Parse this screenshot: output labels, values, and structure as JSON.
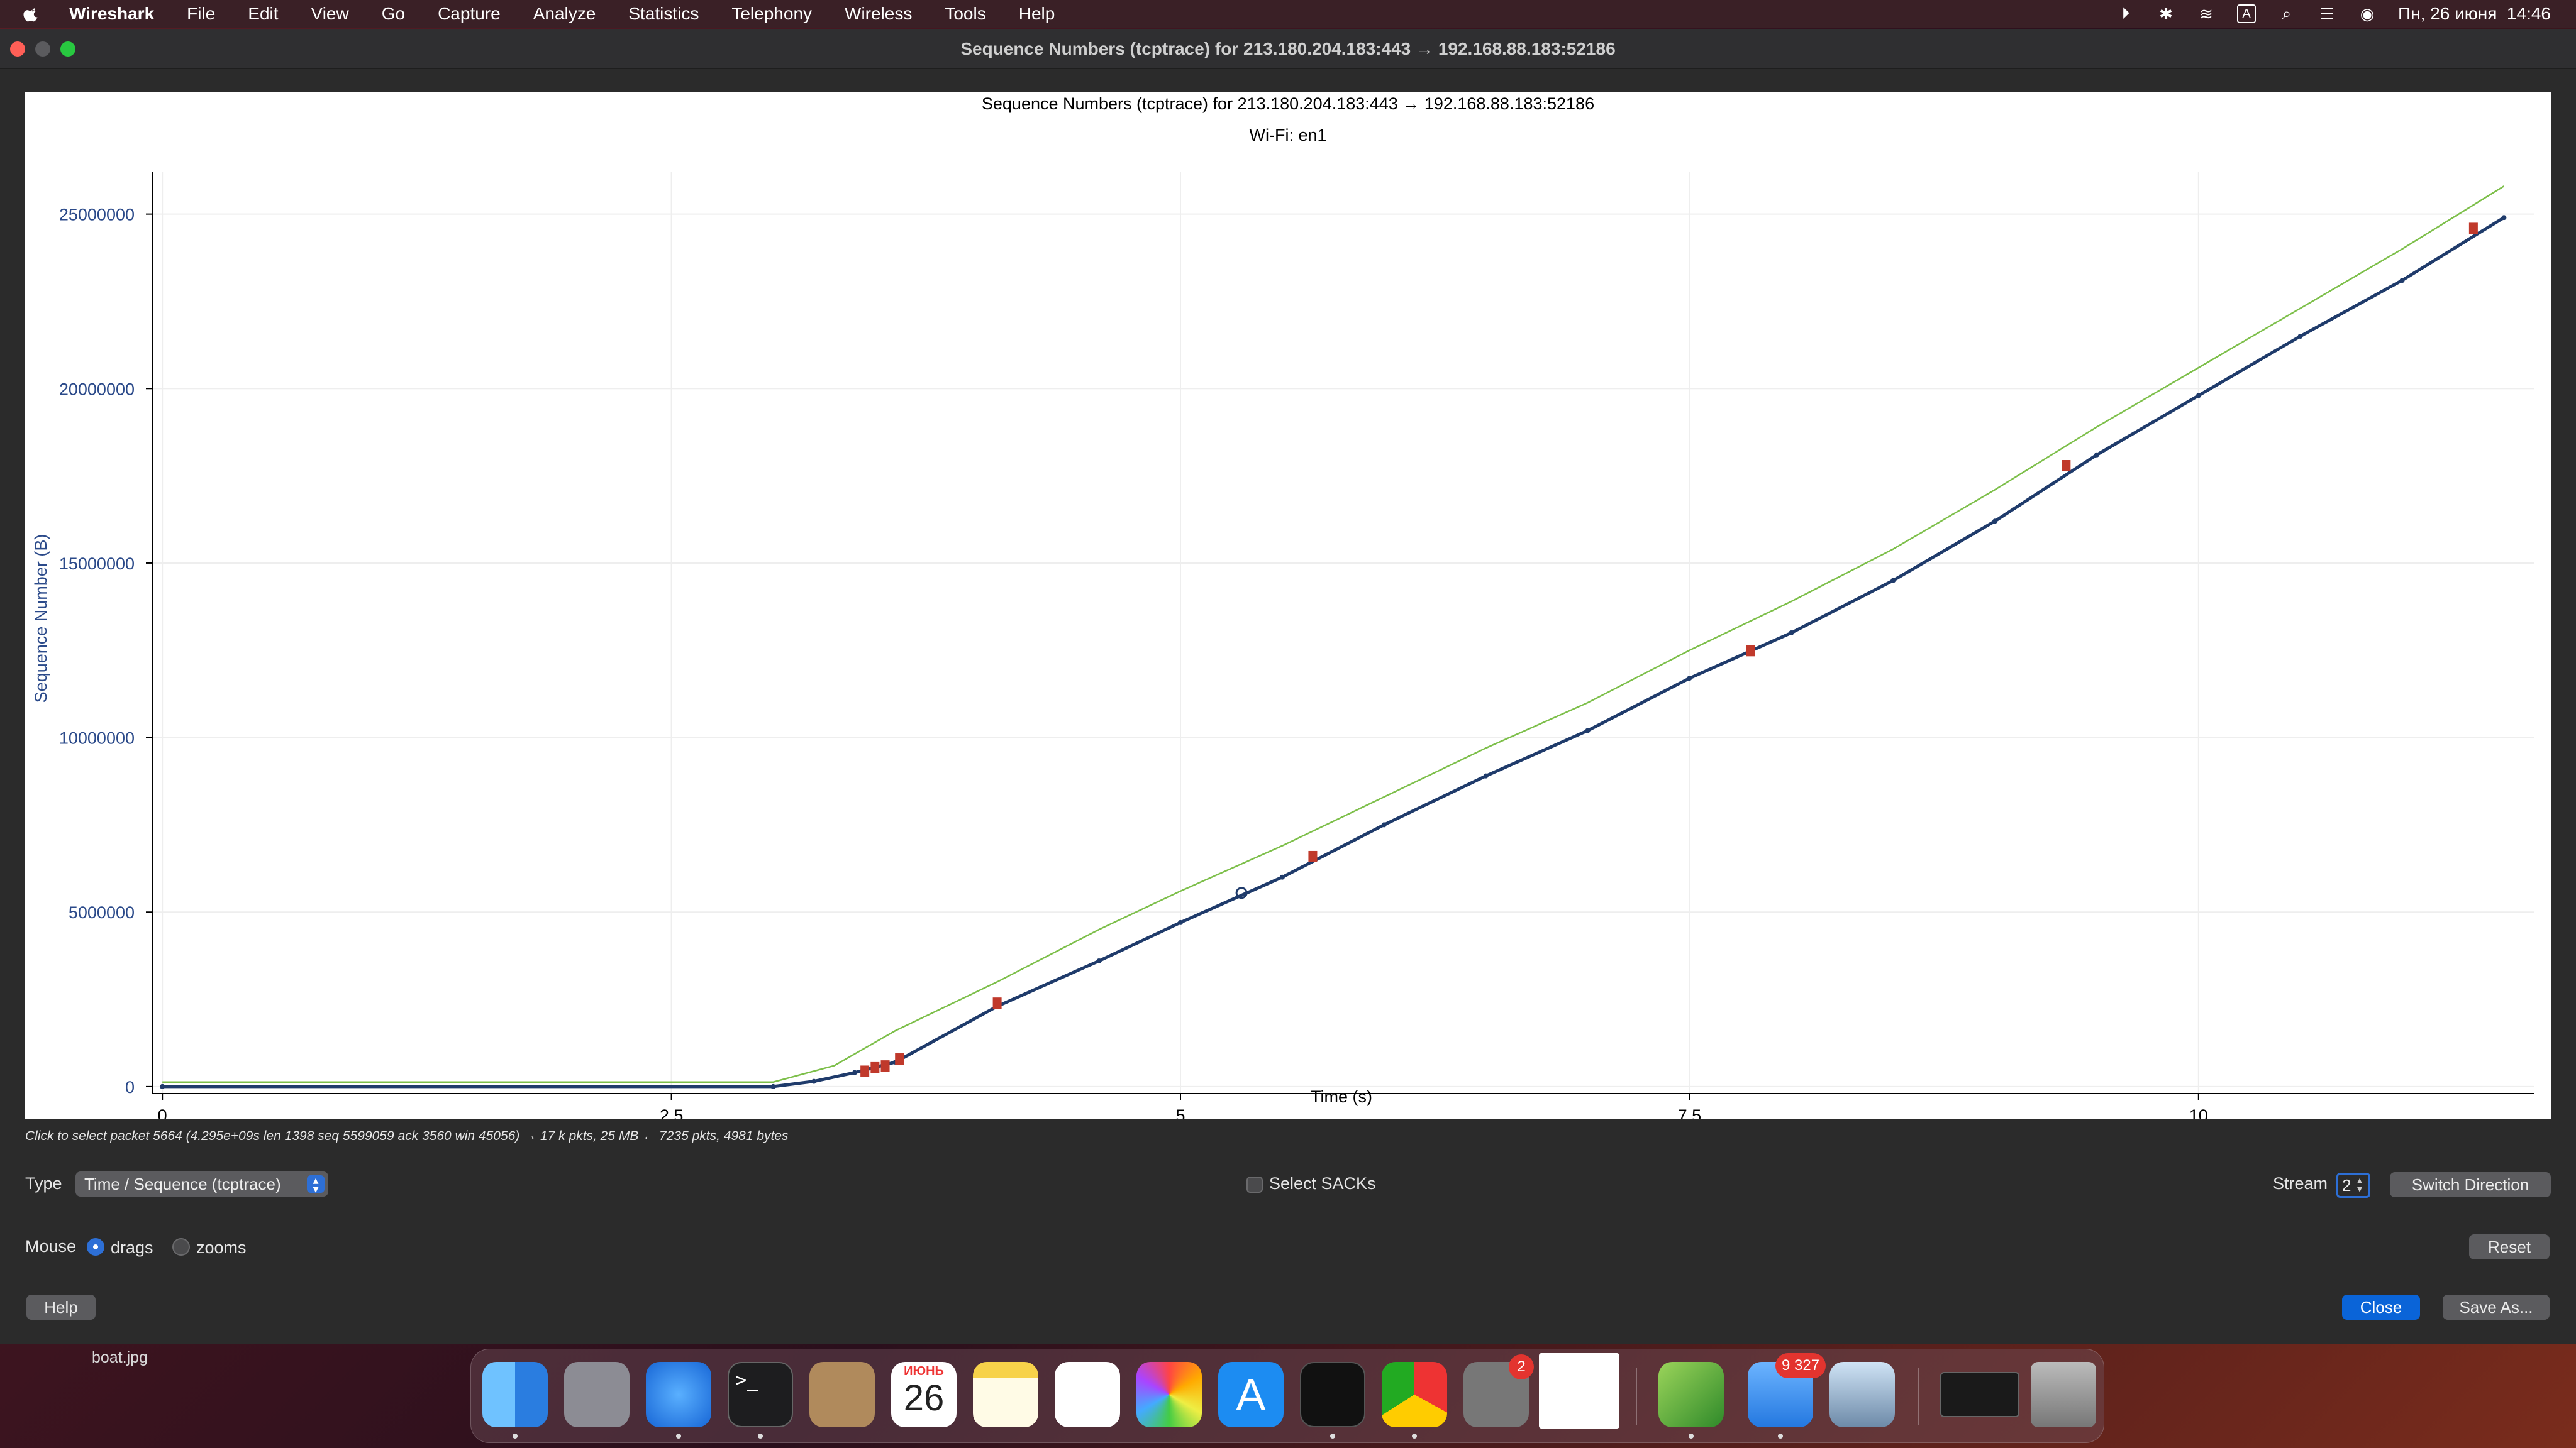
{
  "menubar": {
    "app_name": "Wireshark",
    "items": [
      "File",
      "Edit",
      "View",
      "Go",
      "Capture",
      "Analyze",
      "Statistics",
      "Telephony",
      "Wireless",
      "Tools",
      "Help"
    ],
    "status_icons": [
      "play-circle-icon",
      "bluetooth-icon",
      "wifi-icon",
      "keyboard-input-icon",
      "search-icon",
      "control-center-icon",
      "siri-icon"
    ],
    "input_label": "A",
    "clock": "Пн, 26 июня  14:46"
  },
  "window": {
    "title": "Sequence Numbers (tcptrace) for 213.180.204.183:443 → 192.168.88.183:52186"
  },
  "chart_data": {
    "type": "line",
    "title": "Sequence Numbers (tcptrace) for 213.180.204.183:443 → 192.168.88.183:52186",
    "subtitle": "Wi-Fi: en1",
    "xlabel": "Time (s)",
    "ylabel": "Sequence Number (B)",
    "xlim": [
      -0.05,
      11.65
    ],
    "ylim": [
      -200000,
      26200000
    ],
    "x_ticks": [
      "0",
      "2.5",
      "5",
      "7.5",
      "10"
    ],
    "x_tick_values": [
      0,
      2.5,
      5,
      7.5,
      10
    ],
    "y_ticks": [
      "0",
      "5000000",
      "10000000",
      "15000000",
      "20000000",
      "25000000"
    ],
    "y_tick_values": [
      0,
      5000000,
      10000000,
      15000000,
      20000000,
      25000000
    ],
    "grid": true,
    "legend": "none",
    "series": [
      {
        "color": "#1f3b6b",
        "x": [
          0,
          3.0,
          3.2,
          3.4,
          3.6,
          4.1,
          4.6,
          5.0,
          5.5,
          6.0,
          6.5,
          7.0,
          7.5,
          8.0,
          8.5,
          9.0,
          9.5,
          10.0,
          10.5,
          11.0,
          11.5
        ],
        "y": [
          0,
          0,
          150000,
          400000,
          700000,
          2300000,
          3600000,
          4700000,
          6000000,
          7500000,
          8900000,
          10200000,
          11700000,
          13000000,
          14500000,
          16200000,
          18100000,
          19800000,
          21500000,
          23100000,
          24900000
        ]
      },
      {
        "color": "#7dbf4a",
        "x": [
          0,
          3.0,
          3.3,
          3.6,
          4.1,
          4.6,
          5.0,
          5.5,
          6.0,
          6.5,
          7.0,
          7.5,
          8.0,
          8.5,
          9.0,
          9.5,
          10.0,
          10.5,
          11.0,
          11.5
        ],
        "y": [
          130000,
          130000,
          600000,
          1600000,
          3000000,
          4500000,
          5600000,
          6900000,
          8300000,
          9700000,
          11000000,
          12500000,
          13900000,
          15400000,
          17100000,
          18900000,
          20600000,
          22300000,
          24000000,
          25800000
        ]
      }
    ],
    "retransmissions": {
      "color": "#c0392b",
      "x": [
        3.45,
        3.5,
        3.55,
        3.62,
        4.1,
        5.65,
        7.8,
        9.35,
        11.35
      ],
      "y": [
        350000,
        450000,
        500000,
        700000,
        2300000,
        6500000,
        12400000,
        17700000,
        24500000
      ]
    },
    "marker": {
      "x": 5.3,
      "y": 5550000
    }
  },
  "info": {
    "hint": "Click to select packet 5664 (4.295e+09s len 1398 seq 5599059 ack 3560 win 45056) → 17 k pkts, 25 MB ← 7235 pkts, 4981 bytes"
  },
  "controls": {
    "type_label": "Type",
    "type_value": "Time / Sequence (tcptrace)",
    "select_sacks_label": "Select SACKs",
    "stream_label": "Stream",
    "stream_value": "2",
    "switch_direction": "Switch Direction",
    "mouse_label": "Mouse",
    "drags_label": "drags",
    "zooms_label": "zooms",
    "reset": "Reset",
    "help": "Help",
    "close": "Close",
    "save_as": "Save As..."
  },
  "desktop": {
    "file_label": "boat.jpg"
  },
  "dock": {
    "calendar_month": "ИЮНЬ",
    "calendar_day": "26",
    "settings_badge": "2",
    "mail_badge": "9 327"
  }
}
